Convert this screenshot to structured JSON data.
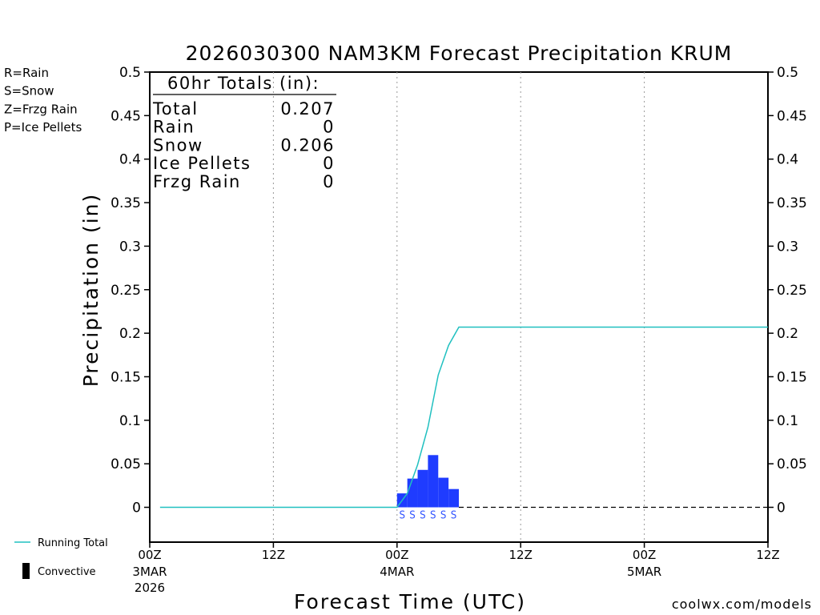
{
  "chart_data": {
    "type": "bar",
    "title": "2026030300 NAM3KM Forecast Precipitation KRUM",
    "xlabel": "Forecast Time (UTC)",
    "ylabel": "Precipitation (in)",
    "ylim": [
      -0.04,
      0.5
    ],
    "xlim_hours": [
      0,
      60
    ],
    "y_ticks": [
      "0",
      "0.05",
      "0.1",
      "0.15",
      "0.2",
      "0.25",
      "0.3",
      "0.35",
      "0.4",
      "0.45",
      "0.5"
    ],
    "y_tick_values": [
      0,
      0.05,
      0.1,
      0.15,
      0.2,
      0.25,
      0.3,
      0.35,
      0.4,
      0.45,
      0.5
    ],
    "x_ticks": [
      {
        "hour": 0,
        "label": "00Z",
        "date": "3MAR",
        "year": "2026"
      },
      {
        "hour": 12,
        "label": "12Z",
        "date": "",
        "year": ""
      },
      {
        "hour": 24,
        "label": "00Z",
        "date": "4MAR",
        "year": ""
      },
      {
        "hour": 36,
        "label": "12Z",
        "date": "",
        "year": ""
      },
      {
        "hour": 48,
        "label": "00Z",
        "date": "5MAR",
        "year": ""
      },
      {
        "hour": 60,
        "label": "12Z",
        "date": "",
        "year": ""
      }
    ],
    "bars": {
      "name": "Snow",
      "color": "#1f3cff",
      "hours": [
        24.5,
        25.5,
        26.5,
        27.5,
        28.5,
        29.5
      ],
      "values": [
        0.016,
        0.033,
        0.043,
        0.06,
        0.034,
        0.021
      ],
      "ptype": [
        "S",
        "S",
        "S",
        "S",
        "S",
        "S"
      ]
    },
    "running_total": {
      "name": "Running Total",
      "color": "#20c0c0",
      "hours": [
        1,
        24,
        25,
        26,
        27,
        28,
        29,
        30,
        60
      ],
      "values": [
        0,
        0,
        0.016,
        0.049,
        0.092,
        0.152,
        0.186,
        0.207,
        0.207
      ]
    },
    "totals_box": {
      "header": "60hr Totals (in):",
      "rows": [
        {
          "label": "Total",
          "value": "0.207"
        },
        {
          "label": "Rain",
          "value": "0"
        },
        {
          "label": "Snow",
          "value": "0.206"
        },
        {
          "label": "Ice Pellets",
          "value": "0"
        },
        {
          "label": "Frzg Rain",
          "value": "0"
        }
      ]
    }
  },
  "legend": {
    "ptypes": [
      {
        "text": "R=Rain",
        "color": "#22cc22"
      },
      {
        "text": "S=Snow",
        "color": "#3355ff"
      },
      {
        "text": "Z=Frzg Rain",
        "color": "#ff8833"
      },
      {
        "text": "P=Ice Pellets",
        "color": "#ff2288"
      }
    ],
    "running_total_label": "Running Total",
    "convective_label": "Convective"
  },
  "footer": {
    "credit": "coolwx.com/models",
    "credit_color": "#cc2222"
  }
}
